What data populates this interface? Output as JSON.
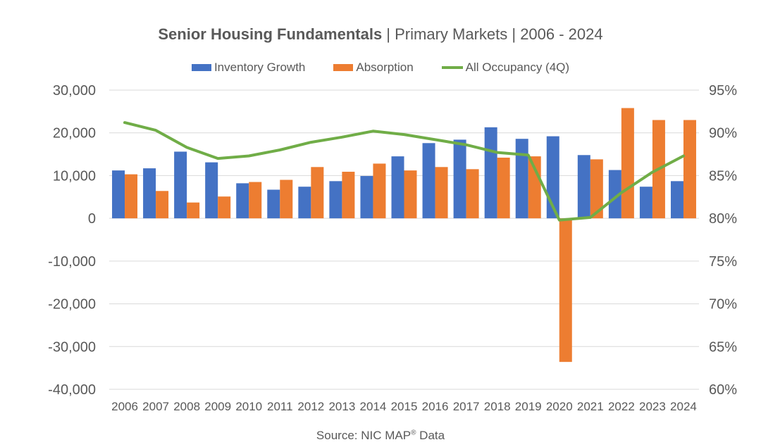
{
  "title": {
    "bold_part": "Senior Housing Fundamentals",
    "rest": " | Primary Markets | 2006 - 2024"
  },
  "legend": {
    "series1": "Inventory Growth",
    "series2": "Absorption",
    "series3": "All Occupancy (4Q)"
  },
  "source": {
    "prefix": "Source: NIC MAP",
    "mark": "®",
    "suffix": " Data"
  },
  "colors": {
    "inventory": "#4472C4",
    "absorption": "#ED7D31",
    "occupancy": "#70AD47",
    "grid": "#D9D9D9",
    "text": "#595959"
  },
  "chart_data": {
    "type": "bar",
    "categories": [
      "2006",
      "2007",
      "2008",
      "2009",
      "2010",
      "2011",
      "2012",
      "2013",
      "2014",
      "2015",
      "2016",
      "2017",
      "2018",
      "2019",
      "2020",
      "2021",
      "2022",
      "2023",
      "2024"
    ],
    "series": [
      {
        "name": "Inventory Growth",
        "type": "bar",
        "axis": "left",
        "values": [
          11200,
          11700,
          15600,
          13100,
          8200,
          6700,
          7400,
          8700,
          9900,
          14500,
          17600,
          18400,
          21300,
          18600,
          19200,
          14800,
          11300,
          7400,
          8700
        ]
      },
      {
        "name": "Absorption",
        "type": "bar",
        "axis": "left",
        "values": [
          10300,
          6400,
          3700,
          5100,
          8500,
          9000,
          12000,
          10900,
          12800,
          11200,
          12000,
          11500,
          14200,
          14500,
          -33600,
          13800,
          25800,
          23000,
          23000
        ]
      },
      {
        "name": "All Occupancy (4Q)",
        "type": "line",
        "axis": "right",
        "values": [
          91.2,
          90.3,
          88.3,
          87.0,
          87.3,
          88.0,
          88.9,
          89.5,
          90.2,
          89.8,
          89.2,
          88.6,
          87.7,
          87.4,
          79.8,
          80.1,
          83.0,
          85.4,
          87.3
        ]
      }
    ],
    "y_left": {
      "ticks": [
        "30,000",
        "20,000",
        "10,000",
        "0",
        "-10,000",
        "-20,000",
        "-30,000",
        "-40,000"
      ],
      "ylim": [
        -40000,
        30000
      ]
    },
    "y_right": {
      "ticks": [
        "95%",
        "90%",
        "85%",
        "80%",
        "75%",
        "70%",
        "65%",
        "60%"
      ],
      "ylim": [
        60,
        95
      ]
    },
    "grid": true,
    "legend_position": "top"
  }
}
